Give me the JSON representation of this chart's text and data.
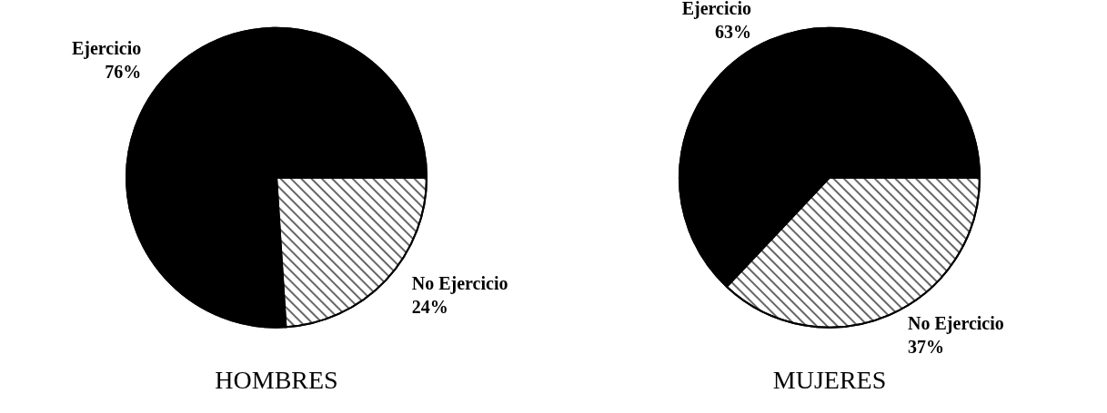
{
  "chart_data": [
    {
      "type": "pie",
      "title": "HOMBRES",
      "categories": [
        "Ejercicio",
        "No Ejercicio"
      ],
      "values": [
        76,
        24
      ],
      "colors": [
        "#000000",
        "#ffffff"
      ],
      "value_labels": [
        "76%",
        "24%"
      ],
      "legend": false
    },
    {
      "type": "pie",
      "title": "MUJERES",
      "categories": [
        "Ejercicio",
        "No Ejercicio"
      ],
      "values": [
        63,
        37
      ],
      "colors": [
        "#000000",
        "#ffffff"
      ],
      "value_labels": [
        "63%",
        "37%"
      ],
      "legend": false
    }
  ]
}
